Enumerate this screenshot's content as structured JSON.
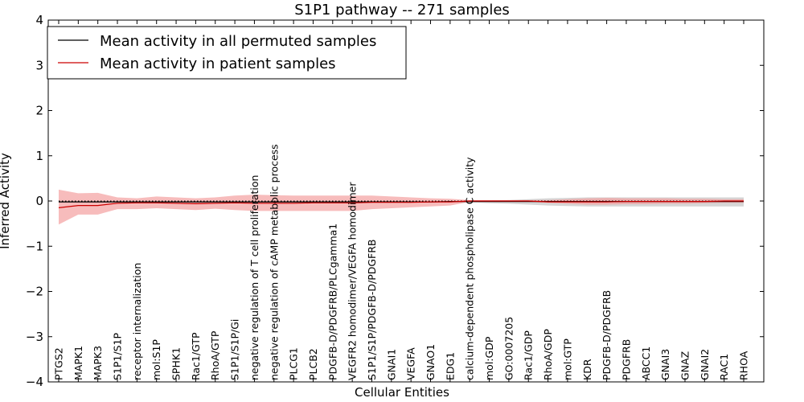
{
  "chart_data": {
    "type": "line",
    "title": "S1P1 pathway -- 271 samples",
    "xlabel": "Cellular Entities",
    "ylabel": "Inferred Activity",
    "ylim": [
      -4,
      4
    ],
    "yticks": [
      -4,
      -3,
      -2,
      -1,
      0,
      1,
      2,
      3,
      4
    ],
    "ytick_labels": [
      "−4",
      "−3",
      "−2",
      "−1",
      "0",
      "1",
      "2",
      "3",
      "4"
    ],
    "grid": false,
    "legend_position": "top-left",
    "zero_line": "dotted",
    "categories": [
      "PTGS2",
      "MAPK1",
      "MAPK3",
      "S1P1/S1P",
      "receptor internalization",
      "mol:S1P",
      "SPHK1",
      "Rac1/GTP",
      "RhoA/GTP",
      "S1P1/S1P/Gi",
      "negative regulation of T cell proliferation",
      "negative regulation of cAMP metabolic process",
      "PLCG1",
      "PLCB2",
      "PDGFB-D/PDGFRB/PLCgamma1",
      "VEGFR2 homodimer/VEGFA homodimer",
      "S1P1/S1P/PDGFB-D/PDGFRB",
      "GNAI1",
      "VEGFA",
      "GNAO1",
      "EDG1",
      "calcium-dependent phospholipase C activity",
      "mol:GDP",
      "GO:0007205",
      "Rac1/GDP",
      "RhoA/GDP",
      "mol:GTP",
      "KDR",
      "PDGFB-D/PDGFRB",
      "PDGFRB",
      "ABCC1",
      "GNAI3",
      "GNAZ",
      "GNAI2",
      "RAC1",
      "RHOA"
    ],
    "series": [
      {
        "name": "Mean activity in all permuted samples",
        "color": "#000000",
        "band_color": "#c8c8c8",
        "values": [
          -0.02,
          -0.02,
          -0.02,
          -0.02,
          -0.02,
          -0.02,
          -0.02,
          -0.02,
          -0.02,
          -0.02,
          -0.02,
          -0.02,
          -0.02,
          -0.02,
          -0.02,
          -0.02,
          -0.02,
          -0.02,
          -0.02,
          -0.02,
          -0.01,
          -0.01,
          -0.01,
          -0.01,
          -0.01,
          -0.01,
          -0.01,
          -0.01,
          -0.01,
          -0.01,
          -0.01,
          -0.01,
          -0.01,
          -0.01,
          -0.01,
          -0.01
        ],
        "upper": [
          0.0,
          0.0,
          0.0,
          0.0,
          0.0,
          0.0,
          0.0,
          0.0,
          0.0,
          0.0,
          0.0,
          0.0,
          0.0,
          0.0,
          0.0,
          0.0,
          0.0,
          0.0,
          0.0,
          0.0,
          0.0,
          0.0,
          0.01,
          0.02,
          0.04,
          0.06,
          0.07,
          0.08,
          0.08,
          0.08,
          0.08,
          0.08,
          0.08,
          0.08,
          0.08,
          0.08
        ],
        "lower": [
          -0.04,
          -0.04,
          -0.04,
          -0.04,
          -0.04,
          -0.04,
          -0.04,
          -0.04,
          -0.04,
          -0.04,
          -0.04,
          -0.04,
          -0.04,
          -0.04,
          -0.04,
          -0.04,
          -0.04,
          -0.04,
          -0.04,
          -0.04,
          -0.03,
          -0.03,
          -0.05,
          -0.06,
          -0.08,
          -0.1,
          -0.11,
          -0.12,
          -0.12,
          -0.12,
          -0.12,
          -0.12,
          -0.12,
          -0.12,
          -0.12,
          -0.12
        ]
      },
      {
        "name": "Mean activity in patient samples",
        "color": "#cc0000",
        "band_color": "#f4a0a0",
        "values": [
          -0.15,
          -0.1,
          -0.1,
          -0.05,
          -0.04,
          -0.04,
          -0.05,
          -0.06,
          -0.05,
          -0.04,
          -0.05,
          -0.05,
          -0.05,
          -0.04,
          -0.04,
          -0.04,
          -0.03,
          -0.03,
          -0.03,
          -0.02,
          -0.02,
          0.0,
          0.0,
          0.0,
          0.0,
          -0.02,
          -0.02,
          -0.02,
          -0.02,
          -0.01,
          -0.01,
          -0.01,
          -0.01,
          -0.01,
          0.0,
          0.0
        ],
        "upper": [
          0.25,
          0.17,
          0.18,
          0.08,
          0.06,
          0.1,
          0.08,
          0.06,
          0.08,
          0.12,
          0.14,
          0.13,
          0.12,
          0.12,
          0.12,
          0.12,
          0.12,
          0.1,
          0.08,
          0.06,
          0.05,
          0.02,
          0.02,
          0.02,
          0.02,
          0.02,
          0.04,
          0.06,
          0.07,
          0.06,
          0.06,
          0.06,
          0.05,
          0.05,
          0.04,
          0.04
        ],
        "lower": [
          -0.52,
          -0.3,
          -0.3,
          -0.18,
          -0.18,
          -0.16,
          -0.18,
          -0.2,
          -0.17,
          -0.2,
          -0.22,
          -0.22,
          -0.22,
          -0.22,
          -0.22,
          -0.22,
          -0.18,
          -0.16,
          -0.14,
          -0.12,
          -0.1,
          -0.02,
          -0.02,
          -0.02,
          -0.02,
          -0.04,
          -0.06,
          -0.08,
          -0.08,
          -0.07,
          -0.07,
          -0.06,
          -0.06,
          -0.05,
          -0.04,
          -0.04
        ]
      }
    ]
  }
}
